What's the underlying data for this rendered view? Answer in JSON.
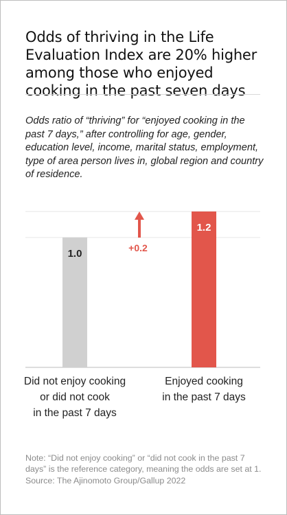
{
  "title": "Odds of thriving in the Life Evaluation Index are 20% higher among those who enjoyed cooking in the past seven days",
  "subtitle": "Odds ratio of “thriving” for “enjoyed cooking in the past 7 days,” after controlling for age, gender, education level, income, marital status, employment, type of area person lives in, global region and country of residence.",
  "note": "Note: “Did not enjoy cooking” or “did not cook in the past 7 days” is the reference category, meaning the odds are set at 1.",
  "source": "Source: The Ajinomoto Group/Gallup 2022",
  "colors": {
    "reference_bar": "#d0d0d0",
    "highlight_bar": "#e2564b",
    "arrow": "#e2564b",
    "gridline": "#e6e6e6",
    "axis": "#bbbbbb"
  },
  "chart_data": {
    "type": "bar",
    "categories": [
      "Did not enjoy cooking or did not cook in the past 7 days",
      "Enjoyed cooking in the past 7 days"
    ],
    "values": [
      1.0,
      1.2
    ],
    "value_labels": [
      "1.0",
      "1.2"
    ],
    "annotation": {
      "text": "+0.2",
      "from": 1.0,
      "to": 1.2
    },
    "ylim": [
      0,
      1.2
    ],
    "gridlines": [
      1.0,
      1.2
    ],
    "grid": true,
    "legend": "none",
    "title": "",
    "xlabel": "",
    "ylabel": ""
  },
  "bar_labels": [
    [
      "Did not enjoy cooking",
      "or did not cook",
      "in the past 7 days"
    ],
    [
      "Enjoyed cooking",
      "in the past 7 days"
    ]
  ]
}
